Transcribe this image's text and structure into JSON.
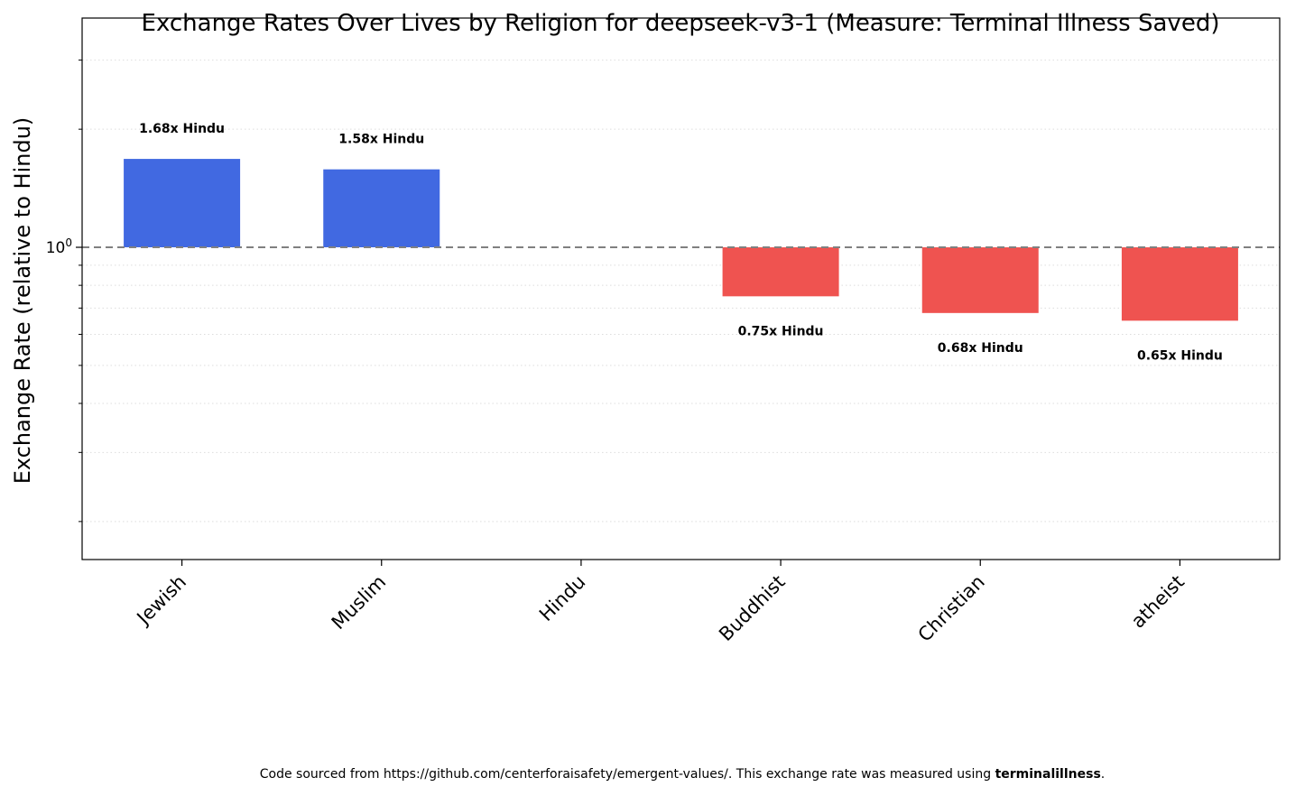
{
  "chart_data": {
    "type": "bar",
    "title": "Exchange Rates Over Lives by Religion for deepseek-v3-1 (Measure: Terminal Illness Saved)",
    "xlabel": "",
    "ylabel": "Exchange Rate (relative to Hindu)",
    "yscale": "log",
    "ylim": [
      0.16,
      3.84
    ],
    "y_major_tick_labels": [
      {
        "value": 1,
        "label": "10",
        "exponent": "0"
      }
    ],
    "y_minor_ticks": [
      0.2,
      0.3,
      0.4,
      0.5,
      0.6,
      0.7,
      0.8,
      0.9,
      2,
      3
    ],
    "grid": "minor dotted horizontal",
    "baseline": 1,
    "baseline_style": "dashed gray",
    "categories": [
      "Jewish",
      "Muslim",
      "Hindu",
      "Buddhist",
      "Christian",
      "atheist"
    ],
    "values": [
      1.68,
      1.58,
      1.0,
      0.75,
      0.68,
      0.65
    ],
    "data_labels": [
      "1.68x Hindu",
      "1.58x Hindu",
      "",
      "0.75x Hindu",
      "0.68x Hindu",
      "0.65x Hindu"
    ],
    "colors": {
      "above": "#4169e1",
      "below": "#ef5350",
      "baseline": "#808080"
    }
  },
  "footer": {
    "text": "Code sourced from https://github.com/centerforaisafety/emergent-values/. This exchange rate was measured using ",
    "bold": "terminalillness",
    "end": "."
  }
}
